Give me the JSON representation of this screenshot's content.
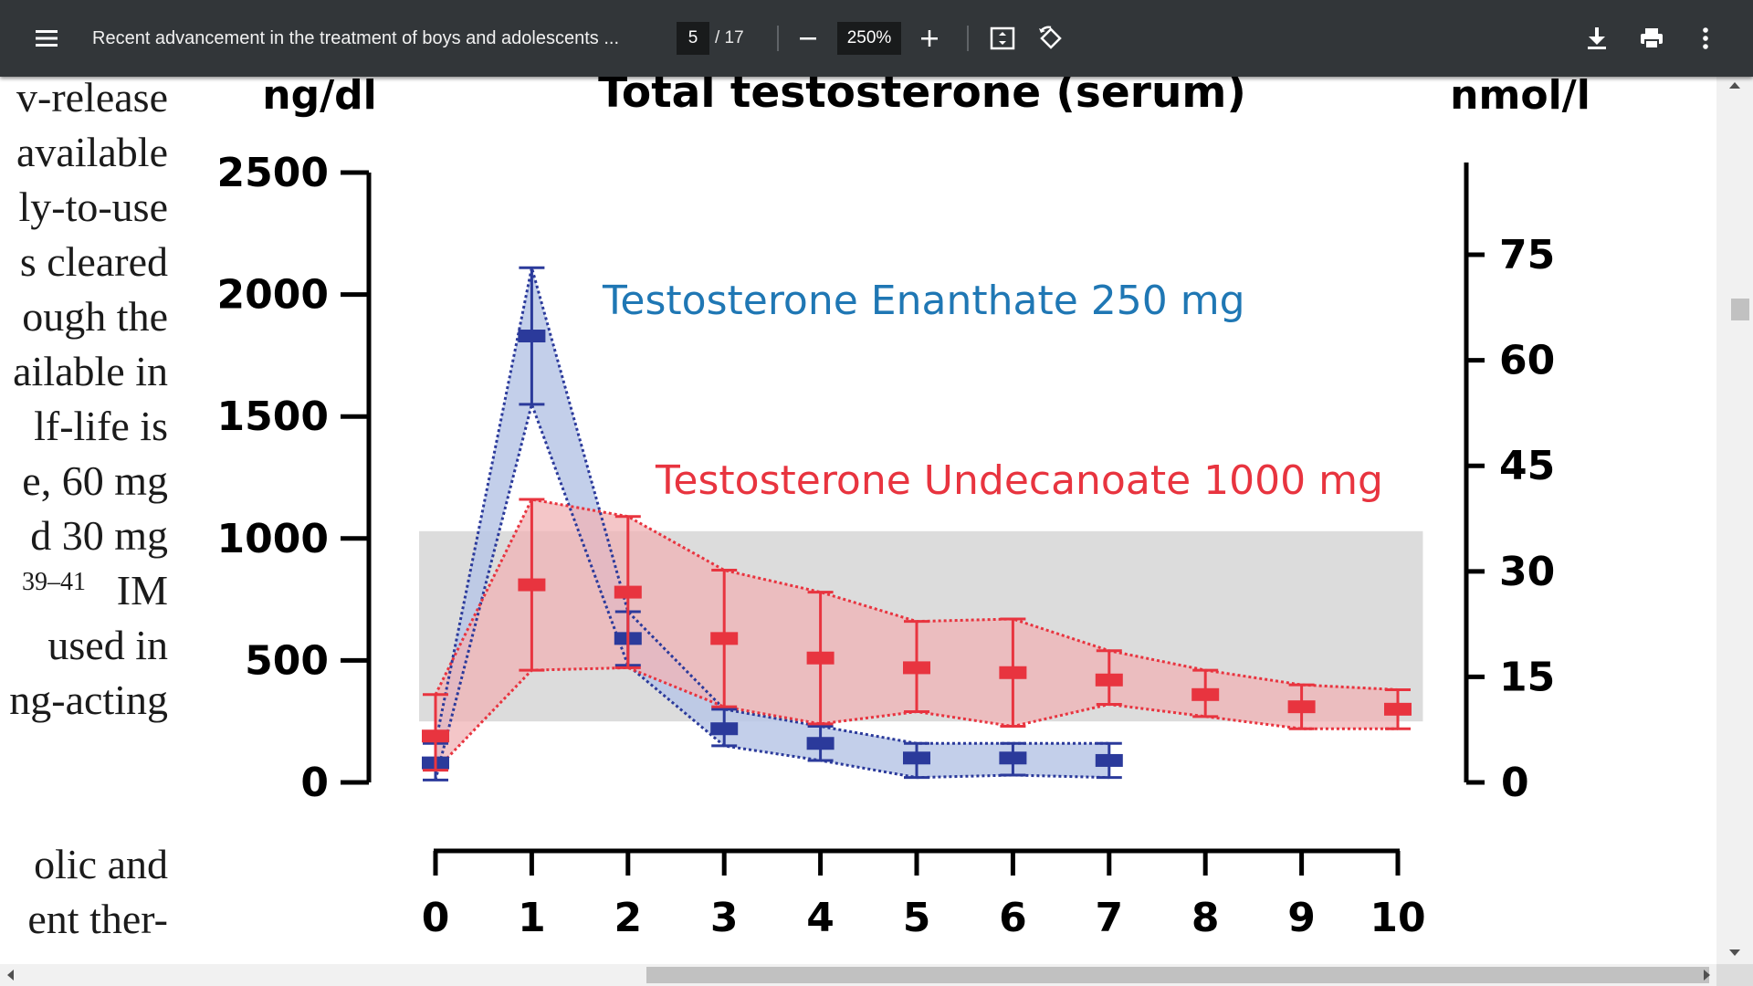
{
  "toolbar": {
    "title": "Recent advancement in the treatment of boys and adolescents ...",
    "page_current": "5",
    "page_total": "/ 17",
    "zoom": "250%",
    "icons": [
      "menu-icon",
      "zoom-out-icon",
      "zoom-in-icon",
      "fit-page-icon",
      "rotate-icon",
      "download-icon",
      "print-icon",
      "more-vert-icon"
    ]
  },
  "left_text": [
    "v-release",
    "available",
    "ly-to-use",
    "s cleared",
    "ough  the",
    "ailable in",
    "lf-life  is",
    "e, 60 mg",
    "d  30 mg",
    "IM",
    "used in",
    "ng-acting",
    "olic and",
    "ent ther-"
  ],
  "left_text_superscript": "39–41",
  "chart_data": {
    "type": "line",
    "title": "Total testosterone (serum)",
    "ylabel_left": "ng/dl",
    "ylabel_right": "nmol/l",
    "ylim": [
      0,
      2500
    ],
    "yticks_left": [
      "0",
      "500",
      "1000",
      "1500",
      "2000",
      "2500"
    ],
    "yticks_right": [
      "0",
      "15",
      "30",
      "45",
      "60",
      "75"
    ],
    "x": [
      0,
      1,
      2,
      3,
      4,
      5,
      6,
      7,
      8,
      9,
      10
    ],
    "reference_band": [
      250,
      1030
    ],
    "series": [
      {
        "name": "Testosterone Enanthate 250 mg",
        "color": "#2b3a9b",
        "label_color": "#1f77b4",
        "fill": "#b8c7e6",
        "x": [
          0,
          1,
          2,
          3,
          4,
          5,
          6,
          7
        ],
        "values": [
          80,
          1830,
          590,
          220,
          160,
          100,
          100,
          90
        ],
        "upper": [
          160,
          2110,
          700,
          300,
          230,
          160,
          160,
          160
        ],
        "lower": [
          10,
          1550,
          480,
          150,
          90,
          20,
          30,
          20
        ]
      },
      {
        "name": "Testosterone Undecanoate 1000 mg",
        "color": "#e8343f",
        "label_color": "#e8343f",
        "fill": "#f0b3b6",
        "x": [
          0,
          1,
          2,
          3,
          4,
          5,
          6,
          7,
          8,
          9,
          10
        ],
        "values": [
          190,
          810,
          780,
          590,
          510,
          470,
          450,
          420,
          360,
          310,
          300
        ],
        "upper": [
          360,
          1160,
          1090,
          870,
          780,
          660,
          670,
          540,
          460,
          400,
          380
        ],
        "lower": [
          50,
          460,
          470,
          310,
          240,
          290,
          230,
          320,
          270,
          220,
          220
        ]
      }
    ]
  }
}
